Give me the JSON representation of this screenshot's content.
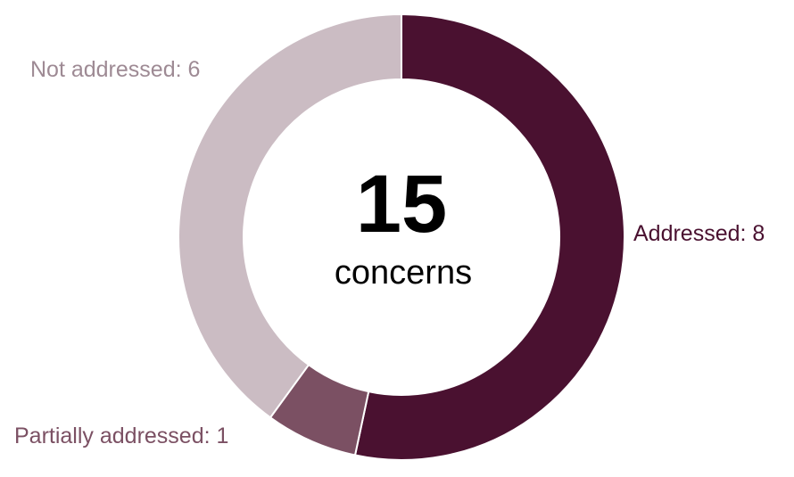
{
  "chart_data": {
    "type": "pie",
    "variant": "donut",
    "total": 15,
    "center_value": "15",
    "center_label": "concerns",
    "slices": [
      {
        "label": "Addressed: 8",
        "category": "Addressed",
        "value": 8,
        "color": "#4a1130",
        "label_color": "#4a1130"
      },
      {
        "label": "Partially addressed: 1",
        "category": "Partially addressed",
        "value": 1,
        "color": "#7b5063",
        "label_color": "#7b5063"
      },
      {
        "label": "Not addressed: 6",
        "category": "Not addressed",
        "value": 6,
        "color": "#cbbcc3",
        "label_color": "#9e8a94"
      }
    ],
    "start_position": "top, clockwise",
    "legend": "none"
  }
}
